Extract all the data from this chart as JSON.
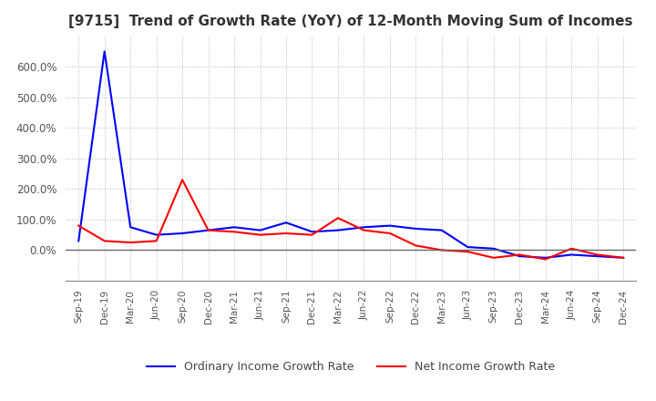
{
  "title": "[9715]  Trend of Growth Rate (YoY) of 12-Month Moving Sum of Incomes",
  "title_fontsize": 11,
  "legend_labels": [
    "Ordinary Income Growth Rate",
    "Net Income Growth Rate"
  ],
  "legend_colors": [
    "#0000FF",
    "#FF0000"
  ],
  "ylim": [
    -100,
    700
  ],
  "yticks": [
    0,
    100,
    200,
    300,
    400,
    500,
    600
  ],
  "x_labels": [
    "Sep-19",
    "Dec-19",
    "Mar-20",
    "Jun-20",
    "Sep-20",
    "Dec-20",
    "Mar-21",
    "Jun-21",
    "Sep-21",
    "Dec-21",
    "Mar-22",
    "Jun-22",
    "Sep-22",
    "Dec-22",
    "Mar-23",
    "Jun-23",
    "Sep-23",
    "Dec-23",
    "Mar-24",
    "Jun-24",
    "Sep-24",
    "Dec-24"
  ],
  "ordinary_income_growth": [
    30,
    650,
    75,
    50,
    55,
    65,
    75,
    65,
    90,
    60,
    65,
    75,
    80,
    70,
    65,
    10,
    5,
    -20,
    -25,
    -15,
    -20,
    -25
  ],
  "net_income_growth": [
    80,
    30,
    25,
    30,
    230,
    65,
    60,
    50,
    55,
    50,
    105,
    65,
    55,
    15,
    0,
    -5,
    -25,
    -15,
    -30,
    5,
    -15,
    -25
  ],
  "background_color": "#FFFFFF",
  "grid_color": "#AAAAAA",
  "line_width": 1.5,
  "title_color": "#333333"
}
